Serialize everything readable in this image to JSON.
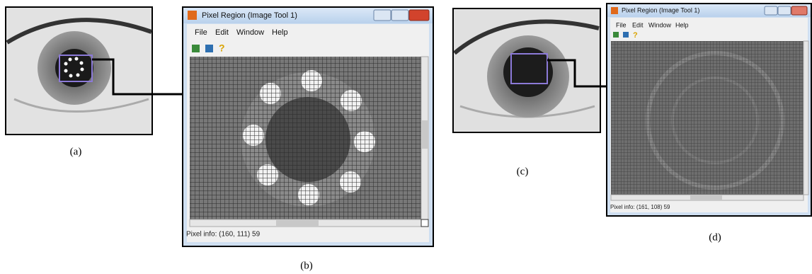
{
  "panels": [
    {
      "label": "(a)"
    },
    {
      "label": "(b)",
      "window": {
        "title": "Pixel Region (Image Tool 1)",
        "menu": [
          "File",
          "Edit",
          "Window",
          "Help"
        ],
        "status": "Pixel info: (160, 111)  59"
      }
    },
    {
      "label": "(c)"
    },
    {
      "label": "(d)",
      "window": {
        "title": "Pixel Region (Image Tool 1)",
        "menu": [
          "File",
          "Edit",
          "Window",
          "Help"
        ],
        "status": "Pixel info: (161, 108)  59"
      }
    }
  ]
}
